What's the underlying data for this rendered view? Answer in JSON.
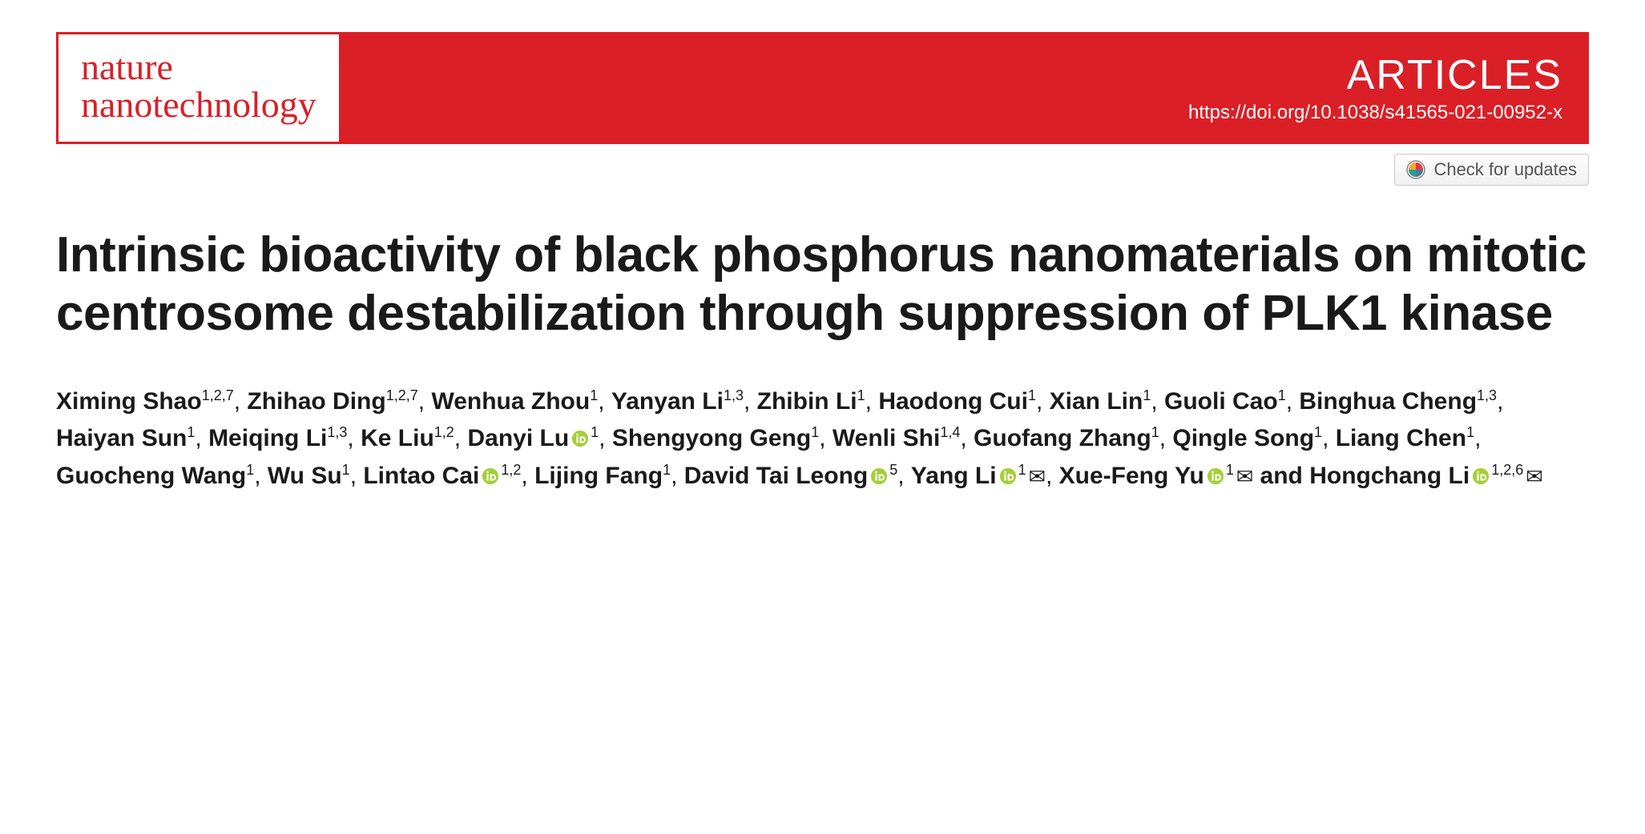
{
  "header": {
    "journal_line1": "nature",
    "journal_line2": "nanotechnology",
    "section_label": "ARTICLES",
    "doi": "https://doi.org/10.1038/s41565-021-00952-x",
    "check_updates_label": "Check for updates"
  },
  "title": "Intrinsic bioactivity of black phosphorus nanomaterials on mitotic centrosome destabilization through suppression of PLK1 kinase",
  "orcid_color": "#a6ce39",
  "authors": [
    {
      "name": "Ximing Shao",
      "affil": "1,2,7"
    },
    {
      "name": "Zhihao Ding",
      "affil": "1,2,7"
    },
    {
      "name": "Wenhua Zhou",
      "affil": "1"
    },
    {
      "name": "Yanyan Li",
      "affil": "1,3"
    },
    {
      "name": "Zhibin Li",
      "affil": "1"
    },
    {
      "name": "Haodong Cui",
      "affil": "1"
    },
    {
      "name": "Xian Lin",
      "affil": "1"
    },
    {
      "name": "Guoli Cao",
      "affil": "1"
    },
    {
      "name": "Binghua Cheng",
      "affil": "1,3"
    },
    {
      "name": "Haiyan Sun",
      "affil": "1"
    },
    {
      "name": "Meiqing Li",
      "affil": "1,3"
    },
    {
      "name": "Ke Liu",
      "affil": "1,2"
    },
    {
      "name": "Danyi Lu",
      "affil": "1",
      "orcid": true
    },
    {
      "name": "Shengyong Geng",
      "affil": "1"
    },
    {
      "name": "Wenli Shi",
      "affil": "1,4"
    },
    {
      "name": "Guofang Zhang",
      "affil": "1"
    },
    {
      "name": "Qingle Song",
      "affil": "1"
    },
    {
      "name": "Liang Chen",
      "affil": "1"
    },
    {
      "name": "Guocheng Wang",
      "affil": "1"
    },
    {
      "name": "Wu Su",
      "affil": "1"
    },
    {
      "name": "Lintao Cai",
      "affil": "1,2",
      "orcid": true
    },
    {
      "name": "Lijing Fang",
      "affil": "1"
    },
    {
      "name": "David Tai Leong",
      "affil": "5",
      "orcid": true
    },
    {
      "name": "Yang Li",
      "affil": "1",
      "orcid": true,
      "corresponding": true
    },
    {
      "name": "Xue-Feng Yu",
      "affil": "1",
      "orcid": true,
      "corresponding": true
    },
    {
      "name": "Hongchang Li",
      "affil": "1,2,6",
      "orcid": true,
      "corresponding": true
    }
  ],
  "separator_and": " and ",
  "separator_comma": ", "
}
